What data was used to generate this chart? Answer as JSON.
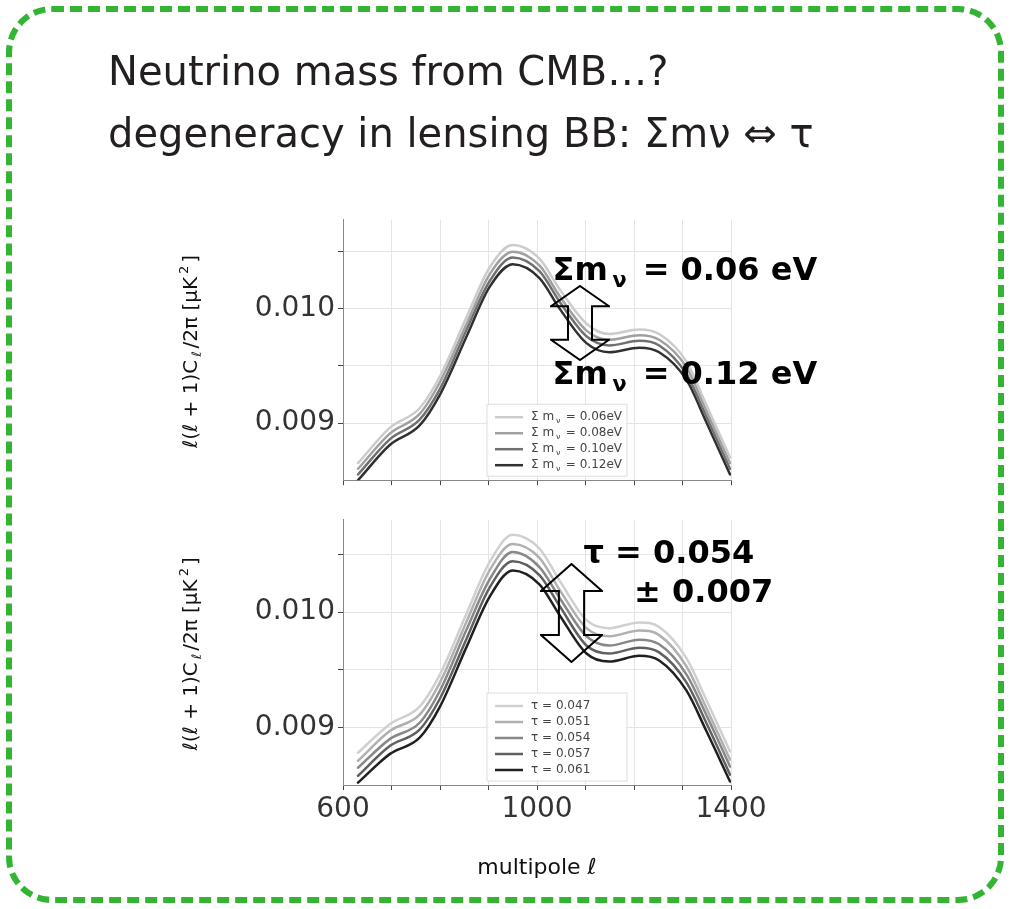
{
  "chart_data": [
    {
      "type": "line",
      "title": "Neutrino mass from CMB…?",
      "subtitle": "degeneracy in lensing BB: Σmν ⇔ τ",
      "ylabel": "ℓ(ℓ + 1)C$_{ℓ}$/2π [μK$^{2}$]",
      "x": [
        631,
        697,
        758,
        800,
        855,
        902,
        950,
        1005,
        1047,
        1102,
        1149,
        1211,
        1252,
        1308,
        1349,
        1398
      ],
      "series": [
        {
          "name": "Σ m$_{ν}$ = 0.06eV",
          "color": "#cccccc",
          "values": [
            0.00865,
            0.00896,
            0.00913,
            0.00941,
            0.00993,
            0.01036,
            0.01056,
            0.01044,
            0.01017,
            0.00987,
            0.00978,
            0.00982,
            0.00978,
            0.00954,
            0.00916,
            0.0087
          ]
        },
        {
          "name": "Σ m$_{ν}$ = 0.08eV",
          "color": "#a0a0a0",
          "values": [
            0.0086,
            0.00891,
            0.00908,
            0.00936,
            0.00987,
            0.0103,
            0.0105,
            0.01038,
            0.01011,
            0.00981,
            0.00973,
            0.00977,
            0.00973,
            0.00949,
            0.00911,
            0.00865
          ]
        },
        {
          "name": "Σ m$_{ν}$ = 0.10eV",
          "color": "#707070",
          "values": [
            0.00855,
            0.00886,
            0.00903,
            0.0093,
            0.00982,
            0.01024,
            0.01045,
            0.01033,
            0.01006,
            0.00976,
            0.00968,
            0.00972,
            0.00968,
            0.00943,
            0.00906,
            0.0086
          ]
        },
        {
          "name": "Σ m$_{ν}$ = 0.12eV",
          "color": "#303030",
          "values": [
            0.0085,
            0.00881,
            0.00898,
            0.00925,
            0.00976,
            0.01019,
            0.01039,
            0.01027,
            0.01,
            0.0097,
            0.00962,
            0.00966,
            0.00962,
            0.00938,
            0.00901,
            0.00855
          ]
        }
      ],
      "xlim": [
        600,
        1400
      ],
      "xticks": [
        600,
        {
          "value": 700,
          "label": null
        },
        {
          "value": 800,
          "label": null
        },
        {
          "value": 900,
          "label": null
        },
        1000,
        {
          "value": 1100,
          "label": null
        },
        {
          "value": 1200,
          "label": null
        },
        {
          "value": 1300,
          "label": null
        },
        1400
      ],
      "ylim": [
        0.0085,
        0.01078
      ],
      "yticks": [
        {
          "value": 0.009,
          "label": "0.009"
        },
        {
          "value": 0.0095,
          "label": null
        },
        {
          "value": 0.01,
          "label": "0.010"
        },
        {
          "value": 0.0105,
          "label": null
        }
      ],
      "tick_labels": "y",
      "grid": true,
      "legend": "bottom",
      "marker": "none",
      "line_style": "solid",
      "annotations": [
        "Σm$_{ν}$ = 0.06 eV",
        "Σm$_{ν}$ = 0.12 eV"
      ]
    },
    {
      "type": "line",
      "xlabel": "multipole ℓ",
      "ylabel": "ℓ(ℓ + 1)C$_{ℓ}$/2π [μK$^{2}$]",
      "x": [
        631,
        697,
        758,
        800,
        855,
        902,
        950,
        1005,
        1047,
        1102,
        1149,
        1211,
        1252,
        1308,
        1349,
        1398
      ],
      "series": [
        {
          "name": "τ = 0.047",
          "color": "#d0d0d0",
          "values": [
            0.00878,
            0.00903,
            0.00918,
            0.00946,
            0.00999,
            0.01043,
            0.01067,
            0.01055,
            0.01027,
            0.00993,
            0.00986,
            0.00991,
            0.00987,
            0.0096,
            0.00924,
            0.00879
          ]
        },
        {
          "name": "τ = 0.051",
          "color": "#b0b0b0",
          "values": [
            0.00871,
            0.00897,
            0.00911,
            0.00939,
            0.00992,
            0.01036,
            0.01059,
            0.01047,
            0.01019,
            0.00986,
            0.00979,
            0.00984,
            0.0098,
            0.00953,
            0.00917,
            0.00872
          ]
        },
        {
          "name": "τ = 0.054",
          "color": "#888888",
          "values": [
            0.00865,
            0.0089,
            0.00904,
            0.00932,
            0.00985,
            0.01028,
            0.01052,
            0.01039,
            0.01012,
            0.00979,
            0.00971,
            0.00976,
            0.00972,
            0.00946,
            0.00911,
            0.00866
          ]
        },
        {
          "name": "τ = 0.057",
          "color": "#606060",
          "values": [
            0.00858,
            0.00884,
            0.00898,
            0.00925,
            0.00977,
            0.01021,
            0.01044,
            0.01032,
            0.01005,
            0.00971,
            0.00964,
            0.00969,
            0.00965,
            0.00939,
            0.00904,
            0.00859
          ]
        },
        {
          "name": "τ = 0.061",
          "color": "#202020",
          "values": [
            0.00852,
            0.00877,
            0.00891,
            0.00918,
            0.0097,
            0.01013,
            0.01036,
            0.01024,
            0.00997,
            0.00964,
            0.00957,
            0.00962,
            0.00958,
            0.00932,
            0.00897,
            0.00853
          ]
        }
      ],
      "xlim": [
        600,
        1400
      ],
      "xticks": [
        600,
        {
          "value": 700,
          "label": null
        },
        {
          "value": 800,
          "label": null
        },
        {
          "value": 900,
          "label": null
        },
        1000,
        {
          "value": 1100,
          "label": null
        },
        {
          "value": 1200,
          "label": null
        },
        {
          "value": 1300,
          "label": null
        },
        1400
      ],
      "ylim": [
        0.0085,
        0.0108
      ],
      "yticks": [
        {
          "value": 0.009,
          "label": "0.009"
        },
        {
          "value": 0.0095,
          "label": null
        },
        {
          "value": 0.01,
          "label": "0.010"
        },
        {
          "value": 0.0105,
          "label": null
        }
      ],
      "grid": true,
      "legend": "bottom",
      "marker": "none",
      "line_style": "solid",
      "annotations": [
        "τ = 0.054",
        "± 0.007"
      ]
    }
  ]
}
